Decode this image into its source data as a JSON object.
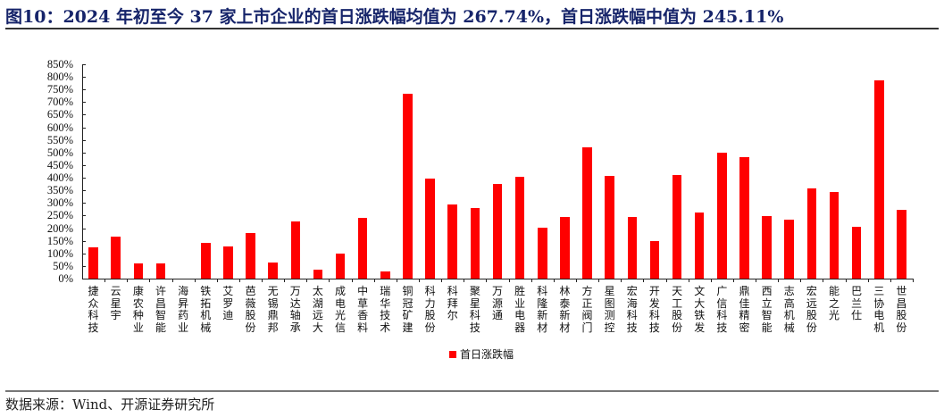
{
  "header": {
    "title": "图10：2024 年初至今 37 家上市企业的首日涨跌幅均值为 267.74%，首日涨跌幅中值为 245.11%"
  },
  "footer": {
    "source": "数据来源：Wind、开源证券研究所"
  },
  "legend": {
    "label": "首日涨跌幅",
    "color": "#ff0000"
  },
  "chart_data": {
    "type": "bar",
    "title": "2024 年初至今 37 家上市企业的首日涨跌幅均值为 267.74%，首日涨跌幅中值为 245.11%",
    "xlabel": "",
    "ylabel": "",
    "ylim": [
      0,
      850
    ],
    "yticks": [
      "0%",
      "50%",
      "100%",
      "150%",
      "200%",
      "250%",
      "300%",
      "350%",
      "400%",
      "450%",
      "500%",
      "550%",
      "600%",
      "650%",
      "700%",
      "750%",
      "800%",
      "850%"
    ],
    "grid": false,
    "legend_position": "bottom",
    "categories": [
      "捷众科技",
      "云星宇",
      "康农种业",
      "许昌智能",
      "海昇药业",
      "铁拓机械",
      "艾罗迪",
      "芭薇股份",
      "无锡鼎邦",
      "万达轴承",
      "太湖远大",
      "成电光信",
      "中草香料",
      "瑞华技术",
      "铜冠矿建",
      "科力股份",
      "科拜尔",
      "聚星科技",
      "万源通",
      "胜业电器",
      "科隆新材",
      "林泰新材",
      "方正阀门",
      "星图测控",
      "宏海科技",
      "开发科技",
      "天工股份",
      "文大铁发",
      "广信科技",
      "鼎佳精密",
      "西立智能",
      "志高机械",
      "宏远股份",
      "能之光",
      "巴兰仕",
      "三协电机",
      "世昌股份"
    ],
    "series": [
      {
        "name": "首日涨跌幅",
        "color": "#ff0000",
        "values": [
          125,
          165,
          60,
          60,
          0,
          140,
          127,
          180,
          64,
          227,
          36,
          100,
          242,
          28,
          732,
          397,
          293,
          280,
          375,
          405,
          202,
          245,
          520,
          407,
          245,
          150,
          412,
          262,
          500,
          480,
          247,
          232,
          358,
          345,
          205,
          785,
          272
        ]
      }
    ]
  }
}
